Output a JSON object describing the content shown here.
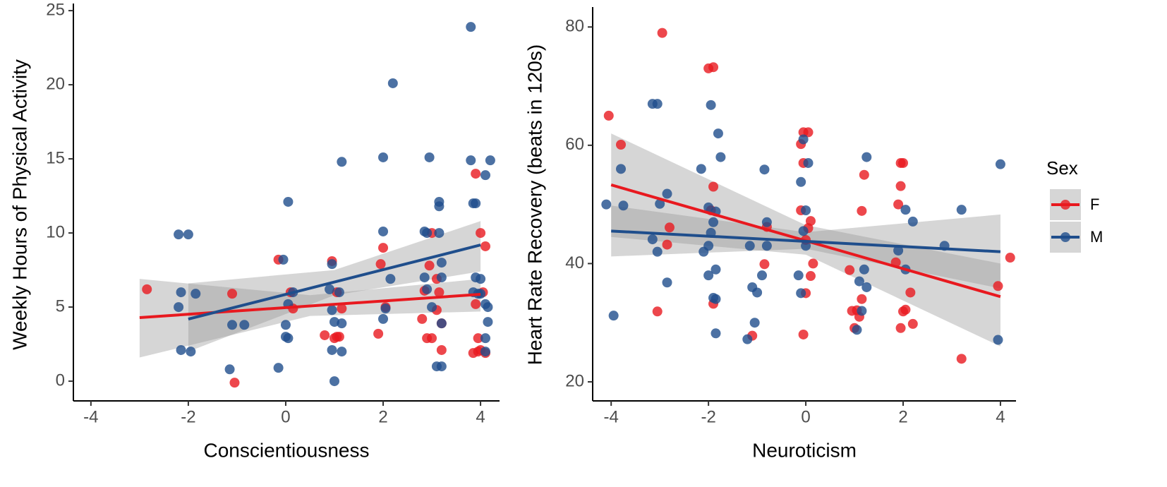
{
  "chart_data": [
    {
      "type": "scatter",
      "x_label": "Conscientiousness",
      "y_label": "Weekly Hours of Physical Activity",
      "xlim": [
        -4.36,
        4.39
      ],
      "ylim": [
        -1.33,
        25.48
      ],
      "xticks": [
        -4,
        -2,
        0,
        2,
        4
      ],
      "yticks": [
        0,
        5,
        10,
        15,
        20,
        25
      ],
      "band_color": "#999999",
      "series": [
        {
          "name": "F",
          "color": "#e8191f",
          "x": [
            -2.85,
            -1.1,
            -1.05,
            -0.15,
            0.1,
            0.15,
            0.8,
            0.95,
            1.0,
            1.05,
            1.1,
            1.15,
            1.05,
            1.9,
            1.95,
            2.0,
            2.05,
            2.8,
            2.85,
            2.9,
            2.95,
            3.0,
            3.0,
            3.1,
            3.15,
            3.2,
            3.2,
            3.1,
            3.85,
            3.9,
            3.9,
            3.95,
            4.0,
            4.0,
            4.1,
            4.1,
            3.95,
            4.05
          ],
          "values": [
            6.2,
            5.9,
            -0.1,
            8.2,
            6.0,
            4.9,
            3.1,
            8.1,
            2.9,
            3.0,
            3.0,
            4.9,
            6.0,
            3.2,
            7.9,
            9.0,
            5.0,
            4.2,
            6.1,
            2.9,
            7.8,
            10.0,
            2.9,
            4.8,
            6.0,
            2.1,
            3.9,
            6.9,
            1.9,
            5.2,
            14.0,
            2.0,
            2.1,
            10.0,
            1.9,
            9.1,
            2.9,
            6.0
          ],
          "fit": {
            "x": [
              -3,
              4
            ],
            "values": [
              4.29,
              5.86
            ]
          },
          "band": {
            "x": [
              -3,
              0.5,
              4
            ],
            "lower": [
              1.6,
              4.4,
              4.7
            ],
            "upper": [
              6.9,
              5.8,
              6.9
            ]
          }
        },
        {
          "name": "M",
          "color": "#1f4e8c",
          "x": [
            -2.2,
            -2.2,
            -2.0,
            -2.15,
            -2.15,
            -1.95,
            -1.85,
            -1.15,
            -1.1,
            -0.85,
            -0.15,
            -0.05,
            0.05,
            0.0,
            0.05,
            0.0,
            0.05,
            0.15,
            0.9,
            0.95,
            0.95,
            1.0,
            0.95,
            1.0,
            1.1,
            1.15,
            1.15,
            1.15,
            2.0,
            2.0,
            2.05,
            2.15,
            2.2,
            2.0,
            2.85,
            2.85,
            2.9,
            2.95,
            2.9,
            3.0,
            3.1,
            3.15,
            3.15,
            3.15,
            3.2,
            3.2,
            3.2,
            3.2,
            3.8,
            3.8,
            3.85,
            3.9,
            3.9,
            3.85,
            3.95,
            4.0,
            4.0,
            4.1,
            4.2,
            4.1,
            4.15,
            4.15,
            4.1,
            4.1
          ],
          "values": [
            5.0,
            9.9,
            9.9,
            6.0,
            2.1,
            2.0,
            5.9,
            0.8,
            3.8,
            3.8,
            0.9,
            8.2,
            12.1,
            3.0,
            2.9,
            3.8,
            5.2,
            6.0,
            6.2,
            4.8,
            2.1,
            0.0,
            7.9,
            4.0,
            6.0,
            14.8,
            2.0,
            3.9,
            10.1,
            15.1,
            4.9,
            6.9,
            20.1,
            4.2,
            7.0,
            10.1,
            6.2,
            15.1,
            10.0,
            5.0,
            1.0,
            10.0,
            11.8,
            12.1,
            8.0,
            7.0,
            3.9,
            1.0,
            23.9,
            14.9,
            12.0,
            12.0,
            7.0,
            6.0,
            5.9,
            5.9,
            6.9,
            13.9,
            14.9,
            5.2,
            5.0,
            4.0,
            2.9,
            2.0
          ],
          "fit": {
            "x": [
              -2,
              4
            ],
            "values": [
              4.19,
              9.19
            ]
          },
          "band": {
            "x": [
              -2,
              1,
              4
            ],
            "lower": [
              2.0,
              5.8,
              7.4
            ],
            "upper": [
              6.6,
              7.5,
              10.8
            ]
          }
        }
      ]
    },
    {
      "type": "scatter",
      "x_label": "Neuroticism",
      "y_label": "Heart Rate Recovery (beats in 120s)",
      "xlim": [
        -4.38,
        4.32
      ],
      "ylim": [
        16.78,
        83.37
      ],
      "xticks": [
        -4,
        -2,
        0,
        2,
        4
      ],
      "yticks": [
        20,
        40,
        60,
        80
      ],
      "band_color": "#999999",
      "legend": "right",
      "legend_title": "Sex",
      "series": [
        {
          "name": "F",
          "color": "#e8191f",
          "x": [
            -4.05,
            -3.8,
            -2.95,
            -3.05,
            -2.85,
            -2.8,
            -2.0,
            -1.9,
            -1.9,
            -1.9,
            -1.95,
            -1.1,
            -0.85,
            -0.8,
            -0.1,
            -0.05,
            0.05,
            -0.05,
            -0.1,
            0.0,
            0.05,
            0.1,
            0.15,
            0.0,
            -0.05,
            0.1,
            0.9,
            0.95,
            1.0,
            1.05,
            1.1,
            1.15,
            1.15,
            1.2,
            1.95,
            2.0,
            1.95,
            1.9,
            1.85,
            1.95,
            2.0,
            2.05,
            2.15,
            2.2,
            3.2,
            3.95,
            4.2
          ],
          "values": [
            65,
            60.1,
            79.0,
            31.9,
            43.2,
            46.1,
            73,
            73.2,
            53,
            33.2,
            49.0,
            27.8,
            39.9,
            46.2,
            60.2,
            62.2,
            62.2,
            57,
            49,
            44,
            46,
            47.2,
            40.0,
            35,
            28.0,
            37.9,
            38.9,
            32.0,
            29.1,
            32.1,
            31.0,
            48.9,
            34.0,
            55.0,
            57,
            57,
            53.1,
            50.0,
            40.2,
            29.1,
            31.9,
            32.2,
            35.1,
            29.8,
            23.9,
            36.2,
            41.0
          ],
          "fit": {
            "x": [
              -4,
              4
            ],
            "values": [
              53.3,
              34.4
            ]
          },
          "band": {
            "x": [
              -4,
              0,
              4
            ],
            "lower": [
              44.5,
              41.5,
              26
            ],
            "upper": [
              62,
              46.5,
              40
            ]
          }
        },
        {
          "name": "M",
          "color": "#1f4e8c",
          "x": [
            -4.1,
            -3.95,
            -3.8,
            -3.75,
            -3.15,
            -3.05,
            -3.15,
            -3.05,
            -3.0,
            -2.85,
            -2.85,
            -2.15,
            -1.95,
            -2.0,
            -2.1,
            -2.0,
            -1.95,
            -2.0,
            -1.9,
            -1.85,
            -1.9,
            -1.85,
            -1.8,
            -1.75,
            -1.85,
            -1.85,
            -1.2,
            -1.15,
            -1.1,
            -1.05,
            -1.0,
            -0.85,
            -0.8,
            -0.8,
            -0.9,
            -0.15,
            -0.1,
            -0.05,
            0.0,
            0.05,
            -0.05,
            -0.1,
            0.0,
            1.05,
            1.1,
            1.15,
            1.2,
            1.25,
            1.25,
            2.05,
            2.2,
            1.9,
            2.05,
            3.2,
            2.85,
            4.0,
            3.95
          ],
          "values": [
            50.0,
            31.2,
            56.0,
            49.8,
            67,
            67,
            44.1,
            42.0,
            50.1,
            51.8,
            36.8,
            56.0,
            66.8,
            49.5,
            42.0,
            43.0,
            45.2,
            38.0,
            47.0,
            34.0,
            34.2,
            39.0,
            62.0,
            58.0,
            48.8,
            28.2,
            27.2,
            43.0,
            36.0,
            30.0,
            35.1,
            55.9,
            43.0,
            47.0,
            38.0,
            38.0,
            53.8,
            61.0,
            49.0,
            57.0,
            45.5,
            35.0,
            43.0,
            28.8,
            37.0,
            32.0,
            39.0,
            36.0,
            58.0,
            49.1,
            47.1,
            42.2,
            39.0,
            49.1,
            43.0,
            56.8,
            27.1
          ],
          "fit": {
            "x": [
              -4,
              4
            ],
            "values": [
              45.5,
              42.0
            ]
          },
          "band": {
            "x": [
              -4,
              0,
              4
            ],
            "lower": [
              41.2,
              42.5,
              35.8
            ],
            "upper": [
              49.8,
              45.3,
              48.3
            ]
          }
        }
      ]
    }
  ]
}
